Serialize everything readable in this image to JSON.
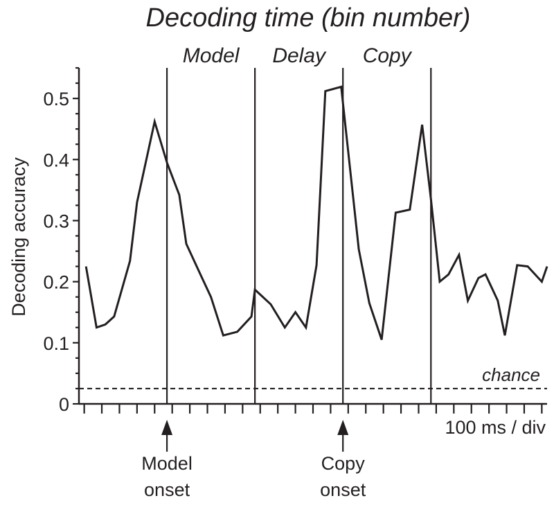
{
  "chart_data": {
    "type": "line",
    "title": "Decoding time (bin number)",
    "ylabel": "Decoding accuracy",
    "xlabel": "100 ms / div",
    "ylim": [
      0,
      0.55
    ],
    "y_ticks": [
      0,
      0.1,
      0.2,
      0.3,
      0.4,
      0.5
    ],
    "y_tick_labels": [
      "0",
      "0.1",
      "0.2",
      "0.3",
      "0.4",
      "0.5"
    ],
    "grid": false,
    "phases": [
      "Model",
      "Delay",
      "Copy"
    ],
    "phase_boundaries": [
      5,
      10,
      15,
      20
    ],
    "chance_label": "chance",
    "chance_level": 0.025,
    "onset_labels": [
      {
        "at": 5,
        "line1": "Model",
        "line2": "onset"
      },
      {
        "at": 15,
        "line1": "Copy",
        "line2": "onset"
      }
    ],
    "x_min": 0,
    "x_max": 26.6,
    "x": [
      0.4,
      1.0,
      1.5,
      2.0,
      2.9,
      3.3,
      4.3,
      5.0,
      5.7,
      6.1,
      6.9,
      7.5,
      8.2,
      9.0,
      9.8,
      10.0,
      10.9,
      11.7,
      12.3,
      12.9,
      13.5,
      14.0,
      14.9,
      15.9,
      16.5,
      17.2,
      18.0,
      18.8,
      19.5,
      20.0,
      20.5,
      21.0,
      21.6,
      22.1,
      22.7,
      23.1,
      23.8,
      24.2,
      24.9,
      25.5,
      26.3,
      26.6
    ],
    "y": [
      0.225,
      0.125,
      0.13,
      0.143,
      0.234,
      0.33,
      0.462,
      0.395,
      0.342,
      0.262,
      0.212,
      0.175,
      0.112,
      0.118,
      0.143,
      0.187,
      0.163,
      0.125,
      0.15,
      0.125,
      0.227,
      0.512,
      0.519,
      0.253,
      0.165,
      0.105,
      0.313,
      0.318,
      0.457,
      0.335,
      0.2,
      0.212,
      0.244,
      0.169,
      0.206,
      0.212,
      0.169,
      0.112,
      0.227,
      0.225,
      0.2,
      0.225
    ]
  }
}
